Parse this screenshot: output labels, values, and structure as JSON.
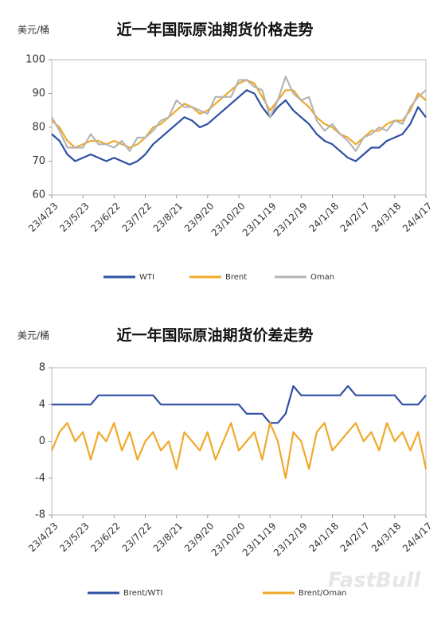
{
  "chart_data": [
    {
      "type": "line",
      "title": "近一年国际原油期货价格走势",
      "y_label": "美元/桶",
      "categories": [
        "23/4/23",
        null,
        null,
        null,
        "23/5/23",
        null,
        null,
        null,
        "23/6/22",
        null,
        null,
        null,
        "23/7/22",
        null,
        null,
        null,
        "23/8/21",
        null,
        null,
        null,
        "23/9/20",
        null,
        null,
        null,
        "23/10/20",
        null,
        null,
        null,
        "23/11/19",
        null,
        null,
        null,
        "23/12/19",
        null,
        null,
        null,
        "24/1/18",
        null,
        null,
        null,
        "24/2/17",
        null,
        null,
        null,
        "24/3/18",
        null,
        null,
        null,
        "24/4/17"
      ],
      "series": [
        {
          "name": "WTI",
          "color": "#2e4fa3",
          "values": [
            78,
            76,
            72,
            70,
            71,
            72,
            71,
            70,
            71,
            70,
            69,
            70,
            72,
            75,
            77,
            79,
            81,
            83,
            82,
            80,
            81,
            83,
            85,
            87,
            89,
            91,
            90,
            86,
            83,
            86,
            88,
            85,
            83,
            81,
            78,
            76,
            75,
            73,
            71,
            70,
            72,
            74,
            74,
            76,
            77,
            78,
            81,
            86,
            83
          ]
        },
        {
          "name": "Brent",
          "color": "#f0a92a",
          "values": [
            82,
            80,
            76,
            74,
            75,
            76,
            76,
            75,
            76,
            75,
            74,
            75,
            77,
            80,
            81,
            83,
            85,
            87,
            86,
            84,
            85,
            87,
            89,
            91,
            93,
            94,
            93,
            89,
            85,
            88,
            91,
            91,
            88,
            86,
            83,
            81,
            80,
            78,
            77,
            75,
            77,
            79,
            79,
            81,
            82,
            82,
            85,
            90,
            88
          ]
        },
        {
          "name": "Oman",
          "color": "#b5b5b5",
          "values": [
            83,
            79,
            74,
            74,
            74,
            78,
            75,
            75,
            74,
            76,
            73,
            77,
            77,
            79,
            82,
            83,
            88,
            86,
            86,
            85,
            84,
            89,
            89,
            89,
            94,
            94,
            92,
            91,
            83,
            88,
            95,
            90,
            88,
            89,
            82,
            79,
            81,
            78,
            76,
            73,
            77,
            78,
            80,
            79,
            82,
            81,
            86,
            89,
            91
          ]
        }
      ],
      "ylim": [
        60,
        100
      ],
      "yticks": [
        60,
        70,
        80,
        90,
        100
      ]
    },
    {
      "type": "line",
      "title": "近一年国际原油期货价差走势",
      "y_label": "美元/桶",
      "categories": [
        "23/4/23",
        null,
        null,
        null,
        "23/5/23",
        null,
        null,
        null,
        "23/6/22",
        null,
        null,
        null,
        "23/7/22",
        null,
        null,
        null,
        "23/8/21",
        null,
        null,
        null,
        "23/9/20",
        null,
        null,
        null,
        "23/10/20",
        null,
        null,
        null,
        "23/11/19",
        null,
        null,
        null,
        "23/12/19",
        null,
        null,
        null,
        "24/1/18",
        null,
        null,
        null,
        "24/2/17",
        null,
        null,
        null,
        "24/3/18",
        null,
        null,
        null,
        "24/4/17"
      ],
      "series": [
        {
          "name": "Brent/WTI",
          "color": "#2e4fa3",
          "values": [
            4,
            4,
            4,
            4,
            4,
            4,
            5,
            5,
            5,
            5,
            5,
            5,
            5,
            5,
            4,
            4,
            4,
            4,
            4,
            4,
            4,
            4,
            4,
            4,
            4,
            3,
            3,
            3,
            2,
            2,
            3,
            6,
            5,
            5,
            5,
            5,
            5,
            5,
            6,
            5,
            5,
            5,
            5,
            5,
            5,
            4,
            4,
            4,
            5
          ]
        },
        {
          "name": "Brent/Oman",
          "color": "#f0a92a",
          "values": [
            -1,
            1,
            2,
            0,
            1,
            -2,
            1,
            0,
            2,
            -1,
            1,
            -2,
            0,
            1,
            -1,
            0,
            -3,
            1,
            0,
            -1,
            1,
            -2,
            0,
            2,
            -1,
            0,
            1,
            -2,
            2,
            0,
            -4,
            1,
            0,
            -3,
            1,
            2,
            -1,
            0,
            1,
            2,
            0,
            1,
            -1,
            2,
            0,
            1,
            -1,
            1,
            -3
          ]
        }
      ],
      "ylim": [
        -8,
        8
      ],
      "yticks": [
        -8,
        -4,
        0,
        4,
        8
      ]
    }
  ],
  "watermark": "FastBull"
}
